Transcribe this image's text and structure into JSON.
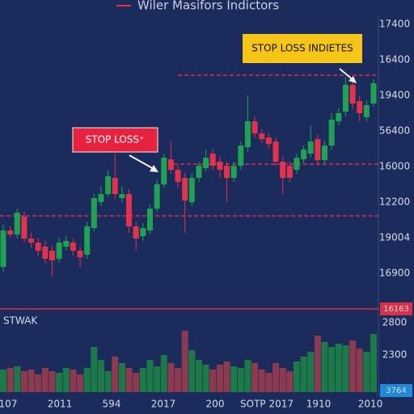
{
  "chart_data": {
    "type": "candlestick",
    "title": "Wiler Masifors Indictors",
    "ylim": [
      0,
      360
    ],
    "open": [
      50,
      95,
      90,
      112,
      85,
      80,
      75,
      70,
      60,
      75,
      80,
      70,
      65,
      98,
      130,
      140,
      160,
      135,
      140,
      100,
      88,
      95,
      122,
      152,
      183,
      170,
      160,
      130,
      160,
      172,
      190,
      180,
      175,
      160,
      175,
      198,
      230,
      215,
      210,
      205,
      180,
      175,
      170,
      183,
      190,
      208,
      182,
      200,
      230,
      242,
      275,
      255,
      235,
      252
    ],
    "high": [
      102,
      100,
      122,
      118,
      92,
      86,
      82,
      76,
      86,
      88,
      85,
      75,
      106,
      140,
      150,
      170,
      190,
      150,
      146,
      106,
      104,
      128,
      158,
      190,
      205,
      176,
      166,
      166,
      180,
      195,
      196,
      186,
      180,
      180,
      205,
      262,
      236,
      220,
      216,
      210,
      186,
      180,
      190,
      200,
      225,
      214,
      206,
      240,
      246,
      285,
      282,
      262,
      256,
      282
    ],
    "low": [
      44,
      86,
      85,
      80,
      74,
      64,
      54,
      38,
      55,
      70,
      64,
      50,
      60,
      94,
      125,
      136,
      134,
      130,
      92,
      70,
      82,
      90,
      118,
      148,
      165,
      148,
      92,
      125,
      155,
      168,
      170,
      160,
      130,
      155,
      170,
      192,
      210,
      203,
      196,
      175,
      140,
      155,
      165,
      178,
      185,
      176,
      178,
      195,
      225,
      236,
      245,
      230,
      230,
      248
    ],
    "close": [
      95,
      90,
      117,
      85,
      80,
      70,
      60,
      58,
      80,
      82,
      70,
      62,
      100,
      135,
      140,
      162,
      140,
      140,
      100,
      85,
      98,
      122,
      152,
      185,
      170,
      155,
      132,
      160,
      175,
      185,
      175,
      170,
      160,
      175,
      200,
      230,
      215,
      208,
      202,
      180,
      160,
      160,
      185,
      195,
      205,
      182,
      200,
      232,
      240,
      275,
      252,
      240,
      250,
      277
    ],
    "up_color": "#1fa352",
    "down_color": "#e3324c",
    "levels": [
      287,
      177,
      113
    ],
    "level_color": "#d9304a",
    "price_labels": [
      "17400",
      "16400",
      "19400",
      "56400",
      "16000",
      "12200",
      "19004",
      "16900"
    ],
    "current_price_label": "16163",
    "x_labels": [
      "107",
      "2011",
      "594",
      "2017",
      "200",
      "SOTP 2017",
      "1910",
      "2010"
    ],
    "annotations": [
      "STOP LOSS INDIETES",
      "STOP LOSS⁺"
    ],
    "volume": {
      "label": "STWAK",
      "ylim": [
        0,
        85
      ],
      "values": [
        28,
        30,
        32,
        26,
        28,
        22,
        30,
        26,
        24,
        30,
        28,
        22,
        30,
        56,
        40,
        26,
        44,
        36,
        30,
        24,
        30,
        40,
        32,
        46,
        36,
        30,
        76,
        52,
        40,
        34,
        28,
        34,
        38,
        32,
        30,
        40,
        36,
        28,
        24,
        36,
        30,
        26,
        38,
        44,
        50,
        70,
        62,
        56,
        60,
        58,
        64,
        54,
        50,
        72
      ],
      "up_color": "#1d7a48",
      "down_color": "#8c3a50",
      "tick_labels": [
        "2800",
        "2300"
      ],
      "current_label": "3764"
    }
  }
}
